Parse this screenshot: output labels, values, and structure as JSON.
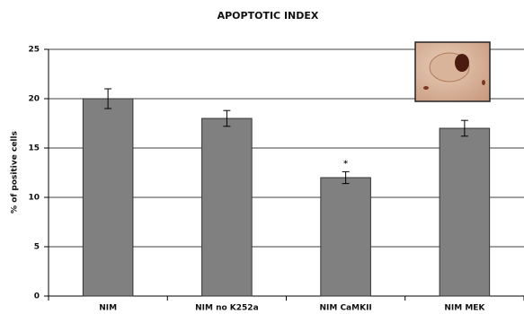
{
  "chart_data": {
    "type": "bar",
    "title": "APOPTOTIC INDEX",
    "y_label": "% of positive cells",
    "categories": [
      "NIM",
      "NIM no K252a",
      "NIM CaMKII",
      "NIM MEK"
    ],
    "values": [
      20,
      18,
      12,
      17
    ],
    "errors": [
      1.0,
      0.8,
      0.6,
      0.8
    ],
    "color": "#808080",
    "annotation": {
      "text": "*",
      "category": 2
    },
    "ylim": [
      0,
      25
    ],
    "yticks": [
      0,
      5,
      10,
      15,
      20,
      25
    ],
    "grid": true
  }
}
